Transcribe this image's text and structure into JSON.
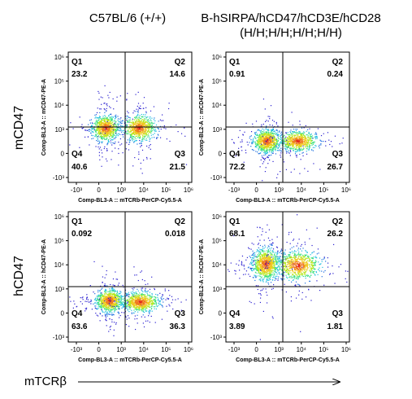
{
  "column_titles": [
    "C57BL/6 (+/+)",
    "B-hSIRPA/hCD47/hCD3E/hCD28",
    "(H/H;H/H;H/H;H/H)"
  ],
  "row_labels": [
    "mCD47",
    "hCD47"
  ],
  "bottom_axis_title": "mTCRβ",
  "x_ticks": [
    "-10³",
    "0",
    "10³",
    "10⁴",
    "10⁵",
    "10⁶"
  ],
  "y_ticks": [
    "10⁶",
    "10⁵",
    "10⁴",
    "10³",
    "0",
    "-10³"
  ],
  "chart_data": [
    {
      "type": "scatter",
      "panel": "mCD47 / C57BL/6",
      "xlabel": "Comp-BL3-A :: mTCRb-PerCP-Cy5.5-A",
      "ylabel": "Comp-BL2-A :: mCD47-PE-A",
      "quadrants": {
        "Q1": "23.2",
        "Q2": "14.6",
        "Q3": "21.5",
        "Q4": "40.6"
      }
    },
    {
      "type": "scatter",
      "panel": "mCD47 / humanized",
      "xlabel": "Comp-BL3-A :: mTCRb-PerCP-Cy5.5-A",
      "ylabel": "Comp-BL2-A :: mCD47-PE-A",
      "quadrants": {
        "Q1": "0.91",
        "Q2": "0.24",
        "Q3": "26.7",
        "Q4": "72.2"
      }
    },
    {
      "type": "scatter",
      "panel": "hCD47 / C57BL/6",
      "xlabel": "Comp-BL3-A :: mTCRb-PerCP-Cy5.5-A",
      "ylabel": "Comp-BL2-A :: hCD47-PE-A",
      "quadrants": {
        "Q1": "0.092",
        "Q2": "0.018",
        "Q3": "36.3",
        "Q4": "63.6"
      }
    },
    {
      "type": "scatter",
      "panel": "hCD47 / humanized",
      "xlabel": "Comp-BL3-A :: mTCRb-PerCP-Cy5.5-A",
      "ylabel": "Comp-BL2-A :: hCD47-PE-A",
      "quadrants": {
        "Q1": "68.1",
        "Q2": "26.2",
        "Q3": "1.81",
        "Q4": "3.89"
      }
    }
  ]
}
